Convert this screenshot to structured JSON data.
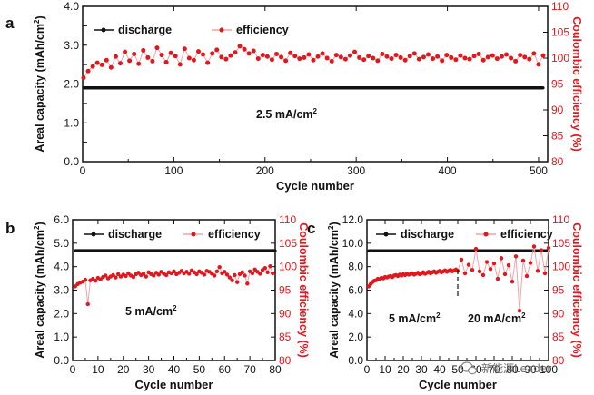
{
  "watermark": {
    "text": "新能源Leader",
    "icon": "wechat-icon"
  },
  "colors": {
    "discharge": "#111111",
    "efficiency": "#e0181e",
    "axis": "#111111"
  },
  "chart_data": [
    {
      "panel": "a",
      "type": "scatter",
      "xlabel": "Cycle number",
      "ylabel": "Areal capacity (mAh/cm",
      "ylabel_sup": "2",
      "ylabel_tail": ")",
      "y2label": "Coulombic efficiency (%)",
      "xlim": [
        0,
        510
      ],
      "ylim": [
        0,
        4.0
      ],
      "y2lim": [
        80,
        110
      ],
      "xticks": [
        0,
        100,
        200,
        300,
        400,
        500
      ],
      "xtick_labels": [
        "0",
        "100",
        "200",
        "300",
        "400",
        "500"
      ],
      "yticks": [
        0,
        0.5,
        1.0,
        1.5,
        2.0,
        2.5,
        3.0,
        3.5,
        4.0
      ],
      "ytick_labels": [
        "0.0",
        "",
        "1.0",
        "",
        "2.0",
        "",
        "3.0",
        "",
        "4.0"
      ],
      "y2ticks": [
        80,
        85,
        90,
        95,
        100,
        105,
        110
      ],
      "y2tick_labels": [
        "80",
        "85",
        "90",
        "95",
        "100",
        "105",
        "110"
      ],
      "legend": [
        "discharge",
        "efficiency"
      ],
      "legend_position": "top-left",
      "annotation": "2.5 mA/cm",
      "annotation_sup": "2",
      "series": [
        {
          "name": "discharge",
          "axis": "left",
          "x_range": [
            1,
            505
          ],
          "value": 1.9
        },
        {
          "name": "efficiency",
          "axis": "right",
          "x_range": [
            1,
            505
          ],
          "values": [
            96.2,
            97.5,
            98.4,
            99.1,
            98.7,
            99.6,
            98.2,
            100.3,
            99.0,
            101.2,
            99.5,
            100.8,
            98.9,
            101.5,
            100.1,
            99.4,
            102.0,
            100.6,
            99.2,
            101.0,
            100.4,
            98.8,
            101.8,
            100.0,
            99.6,
            101.3,
            100.7,
            99.1,
            100.9,
            101.6,
            100.2,
            99.8,
            100.5,
            101.1,
            102.3,
            101.7,
            100.9,
            101.4,
            99.9,
            100.6,
            100.3,
            99.7,
            100.8,
            100.2,
            99.5,
            101.0,
            100.4,
            99.9,
            100.1,
            100.7,
            99.6,
            100.3,
            100.9,
            100.0,
            99.4,
            100.6,
            100.2,
            99.8,
            100.5,
            101.2,
            100.1,
            99.7,
            100.4,
            100.0,
            99.5,
            100.8,
            100.3,
            99.9,
            100.6,
            100.1,
            99.6,
            100.4,
            100.9,
            99.8,
            100.2,
            100.7,
            99.9,
            100.3,
            99.5,
            100.6,
            100.1,
            99.7,
            100.5,
            100.0,
            99.8,
            100.4,
            100.8,
            99.6,
            100.2,
            100.5,
            99.9,
            100.3,
            100.7,
            100.0,
            99.4,
            100.6,
            100.2,
            99.8,
            100.9,
            98.8,
            100.5
          ]
        }
      ]
    },
    {
      "panel": "b",
      "type": "scatter",
      "xlabel": "Cycle number",
      "ylabel": "Areal capacity (mAh/cm",
      "ylabel_sup": "2",
      "ylabel_tail": ")",
      "y2label": "Coulombic efficiency (%)",
      "xlim": [
        0,
        80
      ],
      "ylim": [
        0,
        6.0
      ],
      "y2lim": [
        80,
        110
      ],
      "xticks": [
        0,
        10,
        20,
        30,
        40,
        50,
        60,
        70,
        80
      ],
      "xtick_labels": [
        "0",
        "10",
        "20",
        "30",
        "40",
        "50",
        "60",
        "70",
        "80"
      ],
      "yticks": [
        0,
        1,
        2,
        3,
        4,
        5,
        6
      ],
      "ytick_labels": [
        "0.0",
        "1.0",
        "2.0",
        "3.0",
        "4.0",
        "5.0",
        "6.0"
      ],
      "y2ticks": [
        80,
        85,
        90,
        95,
        100,
        105,
        110
      ],
      "y2tick_labels": [
        "80",
        "85",
        "90",
        "95",
        "100",
        "105",
        "110"
      ],
      "legend": [
        "discharge",
        "efficiency"
      ],
      "legend_position": "top-left",
      "annotation": "5 mA/cm",
      "annotation_sup": "2",
      "series": [
        {
          "name": "discharge",
          "axis": "left",
          "x_range": [
            1,
            80
          ],
          "value": 4.68
        },
        {
          "name": "efficiency",
          "axis": "right",
          "x": [
            1,
            2,
            3,
            4,
            5,
            6,
            7,
            8,
            9,
            10,
            11,
            12,
            13,
            14,
            15,
            16,
            17,
            18,
            19,
            20,
            21,
            22,
            23,
            24,
            25,
            26,
            27,
            28,
            29,
            30,
            31,
            32,
            33,
            34,
            35,
            36,
            37,
            38,
            39,
            40,
            41,
            42,
            43,
            44,
            45,
            46,
            47,
            48,
            49,
            50,
            51,
            52,
            53,
            54,
            55,
            56,
            57,
            58,
            59,
            60,
            61,
            62,
            63,
            64,
            65,
            66,
            67,
            68,
            69,
            70,
            71,
            72,
            73,
            74,
            75,
            76,
            77,
            78,
            79
          ],
          "values": [
            95.8,
            96.3,
            96.6,
            96.8,
            97.2,
            92.0,
            97.1,
            97.4,
            97.0,
            97.6,
            97.3,
            97.8,
            98.1,
            97.5,
            97.9,
            98.2,
            97.7,
            98.4,
            97.9,
            98.3,
            98.0,
            98.6,
            98.1,
            97.8,
            98.4,
            98.7,
            98.2,
            98.5,
            97.9,
            98.8,
            98.4,
            98.1,
            98.7,
            98.3,
            98.9,
            98.5,
            98.2,
            98.8,
            98.6,
            99.0,
            98.4,
            98.7,
            99.1,
            98.6,
            98.9,
            98.5,
            99.2,
            98.8,
            98.4,
            99.0,
            98.7,
            98.3,
            99.1,
            98.9,
            98.5,
            98.1,
            99.0,
            99.9,
            98.6,
            98.9,
            98.3,
            97.7,
            97.1,
            98.2,
            96.7,
            98.4,
            98.8,
            98.1,
            96.4,
            99.0,
            98.6,
            99.4,
            98.9,
            98.5,
            99.3,
            99.7,
            98.8,
            100.1,
            98.6
          ]
        }
      ]
    },
    {
      "panel": "c",
      "type": "scatter",
      "xlabel": "Cycle number",
      "ylabel": "Areal capacity (mAh/cm",
      "ylabel_sup": "2",
      "ylabel_tail": ")",
      "y2label": "Coulombic efficiency (%)",
      "xlim": [
        0,
        100
      ],
      "ylim": [
        0,
        12.0
      ],
      "y2lim": [
        80,
        110
      ],
      "xticks": [
        0,
        10,
        20,
        30,
        40,
        50,
        60,
        70,
        80,
        90,
        100
      ],
      "xtick_labels": [
        "0",
        "10",
        "20",
        "30",
        "40",
        "50",
        "60",
        "70",
        "80",
        "90",
        "100"
      ],
      "yticks": [
        0,
        2,
        4,
        6,
        8,
        10,
        12
      ],
      "ytick_labels": [
        "0.0",
        "2.0",
        "4.0",
        "6.0",
        "8.0",
        "10.0",
        "12.0"
      ],
      "y2ticks": [
        80,
        85,
        90,
        95,
        100,
        105,
        110
      ],
      "y2tick_labels": [
        "80",
        "85",
        "90",
        "95",
        "100",
        "105",
        "110"
      ],
      "legend": [
        "discharge",
        "efficiency"
      ],
      "legend_position": "top-left",
      "divider_x": 50,
      "annotations": [
        {
          "text": "5 mA/cm",
          "sup": "2"
        },
        {
          "text": "20 mA/cm",
          "sup": "2"
        }
      ],
      "series": [
        {
          "name": "discharge",
          "axis": "left",
          "x_range": [
            1,
            100
          ],
          "value": 9.35
        },
        {
          "name": "efficiency",
          "axis": "right",
          "x": [
            1,
            2,
            3,
            4,
            5,
            6,
            7,
            8,
            9,
            10,
            11,
            12,
            13,
            14,
            15,
            16,
            17,
            18,
            19,
            20,
            21,
            22,
            23,
            24,
            25,
            26,
            27,
            28,
            29,
            30,
            31,
            32,
            33,
            34,
            35,
            36,
            37,
            38,
            39,
            40,
            41,
            42,
            43,
            44,
            45,
            46,
            47,
            48,
            49,
            50,
            52,
            54,
            56,
            58,
            60,
            62,
            64,
            66,
            68,
            70,
            72,
            74,
            76,
            78,
            80,
            82,
            84,
            86,
            88,
            90,
            92,
            94,
            96,
            98,
            100
          ],
          "values": [
            95.8,
            96.3,
            96.7,
            97.0,
            97.1,
            97.4,
            97.3,
            97.6,
            97.5,
            97.8,
            97.7,
            97.9,
            98.0,
            97.8,
            98.1,
            98.2,
            98.0,
            98.3,
            98.1,
            98.4,
            98.2,
            98.5,
            98.3,
            98.4,
            98.6,
            98.3,
            98.5,
            98.7,
            98.4,
            98.6,
            98.8,
            98.5,
            98.7,
            98.9,
            98.6,
            98.8,
            99.0,
            98.7,
            98.9,
            99.1,
            98.8,
            99.0,
            99.2,
            98.9,
            99.1,
            99.3,
            99.0,
            99.2,
            99.4,
            99.1,
            101.5,
            98.6,
            100.4,
            99.3,
            103.8,
            99.0,
            98.2,
            101.0,
            99.5,
            100.7,
            97.4,
            101.8,
            98.4,
            100.3,
            96.8,
            102.2,
            90.6,
            101.3,
            98.0,
            100.8,
            104.3,
            99.1,
            103.5,
            98.6,
            104.0
          ]
        }
      ]
    }
  ]
}
